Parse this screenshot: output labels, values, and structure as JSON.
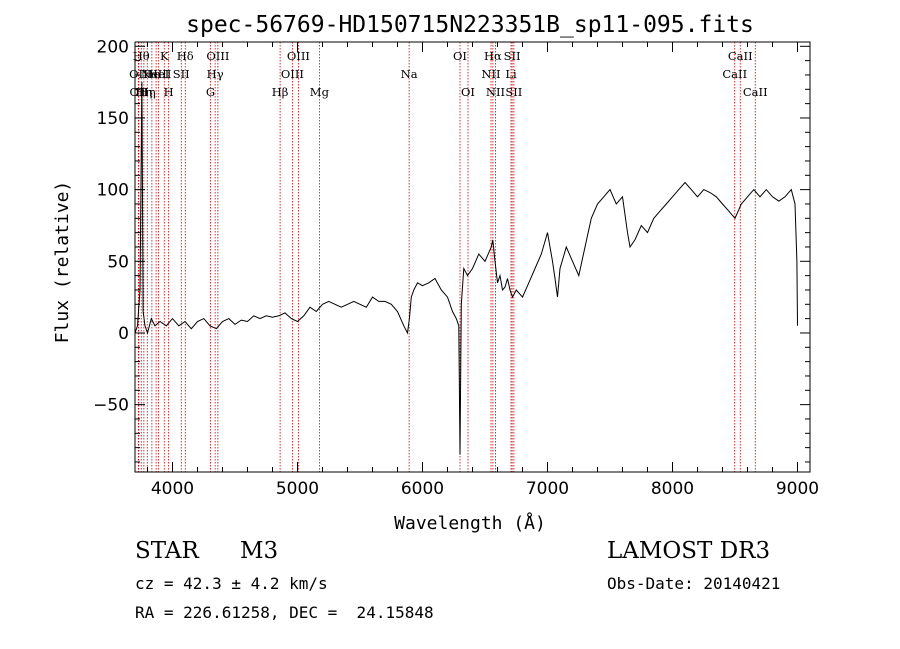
{
  "chart_data": {
    "type": "line",
    "title": "spec-56769-HD150715N223351B_sp11-095.fits",
    "xlabel": "Wavelength (Å)",
    "ylabel": "Flux (relative)",
    "xlim": [
      3700,
      9100
    ],
    "ylim": [
      -97,
      203
    ],
    "x_ticks": [
      4000,
      5000,
      6000,
      7000,
      8000,
      9000
    ],
    "y_ticks": [
      -50,
      0,
      50,
      100,
      150,
      200
    ],
    "x_tick_labels": [
      "4000",
      "5000",
      "6000",
      "7000",
      "8000",
      "9000"
    ],
    "y_tick_labels": [
      "−50",
      "0",
      "50",
      "100",
      "150",
      "200"
    ],
    "grid": false,
    "legend": "none",
    "line_color": "#000000",
    "marker_line_color": "#cc0000",
    "series": [
      {
        "x": [
          3700,
          3720,
          3740,
          3755,
          3765,
          3780,
          3800,
          3830,
          3860,
          3900,
          3950,
          4000,
          4050,
          4100,
          4150,
          4200,
          4250,
          4300,
          4350,
          4400,
          4450,
          4500,
          4550,
          4600,
          4650,
          4700,
          4750,
          4800,
          4850,
          4900,
          4950,
          5000,
          5050,
          5100,
          5150,
          5200,
          5250,
          5300,
          5350,
          5400,
          5450,
          5500,
          5550,
          5600,
          5650,
          5700,
          5750,
          5800,
          5850,
          5880,
          5895,
          5910,
          5930,
          5960,
          6000,
          6050,
          6100,
          6150,
          6200,
          6240,
          6270,
          6290,
          6300,
          6310,
          6330,
          6360,
          6400,
          6450,
          6500,
          6550,
          6562,
          6580,
          6600,
          6620,
          6640,
          6660,
          6680,
          6700,
          6720,
          6750,
          6800,
          6850,
          6900,
          6950,
          7000,
          7040,
          7060,
          7080,
          7100,
          7150,
          7200,
          7250,
          7300,
          7350,
          7400,
          7450,
          7500,
          7550,
          7600,
          7640,
          7660,
          7700,
          7750,
          7800,
          7850,
          7900,
          7950,
          8000,
          8050,
          8100,
          8150,
          8200,
          8250,
          8300,
          8350,
          8400,
          8450,
          8500,
          8550,
          8600,
          8650,
          8700,
          8750,
          8800,
          8850,
          8900,
          8950,
          8980,
          8995,
          9000
        ],
        "y": [
          0,
          5,
          30,
          175,
          15,
          5,
          0,
          10,
          5,
          8,
          5,
          10,
          5,
          8,
          3,
          8,
          10,
          5,
          3,
          8,
          10,
          6,
          9,
          8,
          12,
          10,
          12,
          11,
          12,
          14,
          10,
          8,
          12,
          18,
          15,
          20,
          22,
          20,
          18,
          20,
          22,
          20,
          18,
          25,
          22,
          22,
          20,
          15,
          5,
          0,
          10,
          25,
          30,
          35,
          33,
          35,
          38,
          30,
          25,
          15,
          10,
          5,
          -85,
          20,
          45,
          40,
          45,
          55,
          50,
          60,
          65,
          50,
          35,
          40,
          30,
          32,
          38,
          30,
          25,
          30,
          25,
          35,
          45,
          55,
          70,
          50,
          38,
          25,
          45,
          60,
          50,
          40,
          60,
          80,
          90,
          95,
          100,
          90,
          95,
          70,
          60,
          65,
          75,
          70,
          80,
          85,
          90,
          95,
          100,
          105,
          100,
          95,
          100,
          98,
          95,
          90,
          85,
          80,
          90,
          95,
          100,
          95,
          100,
          95,
          92,
          95,
          100,
          90,
          50,
          5
        ]
      }
    ],
    "line_markers": [
      {
        "x": 3727,
        "label": "OII",
        "row": 2
      },
      {
        "x": 3730,
        "label": "OII",
        "row": 3
      },
      {
        "x": 3750,
        "label": "Hθ",
        "row": 1
      },
      {
        "x": 3771,
        "label": "Hη",
        "row": 3
      },
      {
        "x": 3798,
        "label": "Hη",
        "row": 3
      },
      {
        "x": 3835,
        "label": "He",
        "row": 2
      },
      {
        "x": 3869,
        "label": "NeIII",
        "row": 2
      },
      {
        "x": 3889,
        "label": "HeI",
        "row": 2
      },
      {
        "x": 3934,
        "label": "K",
        "row": 1
      },
      {
        "x": 3969,
        "label": "H",
        "row": 3
      },
      {
        "x": 4070,
        "label": "SII",
        "row": 2
      },
      {
        "x": 4102,
        "label": "Hδ",
        "row": 1
      },
      {
        "x": 4304,
        "label": "G",
        "row": 3
      },
      {
        "x": 4341,
        "label": "Hγ",
        "row": 2
      },
      {
        "x": 4363,
        "label": "OIII",
        "row": 1
      },
      {
        "x": 4861,
        "label": "Hβ",
        "row": 3
      },
      {
        "x": 4959,
        "label": "OIII",
        "row": 2
      },
      {
        "x": 5007,
        "label": "OIII",
        "row": 1
      },
      {
        "x": 5175,
        "label": "Mg",
        "row": 3
      },
      {
        "x": 5893,
        "label": "Na",
        "row": 2
      },
      {
        "x": 6300,
        "label": "OI",
        "row": 1
      },
      {
        "x": 6364,
        "label": "OI",
        "row": 3
      },
      {
        "x": 6548,
        "label": "NII",
        "row": 2
      },
      {
        "x": 6563,
        "label": "Hα",
        "row": 1
      },
      {
        "x": 6584,
        "label": "NII",
        "row": 3
      },
      {
        "x": 6708,
        "label": "Li",
        "row": 2
      },
      {
        "x": 6717,
        "label": "SII",
        "row": 1
      },
      {
        "x": 6731,
        "label": "SII",
        "row": 3
      },
      {
        "x": 8498,
        "label": "CaII",
        "row": 2
      },
      {
        "x": 8542,
        "label": "CaII",
        "row": 1
      },
      {
        "x": 8662,
        "label": "CaII",
        "row": 3
      }
    ]
  },
  "info": {
    "class_label": "STAR",
    "subclass_label": "M3",
    "survey_label": "LAMOST DR3",
    "cz_line": "cz = 42.3 ± 4.2 km/s",
    "obs_date_line": "Obs-Date: 20140421",
    "radec_line": "RA = 226.61258, DEC =  24.15848"
  }
}
